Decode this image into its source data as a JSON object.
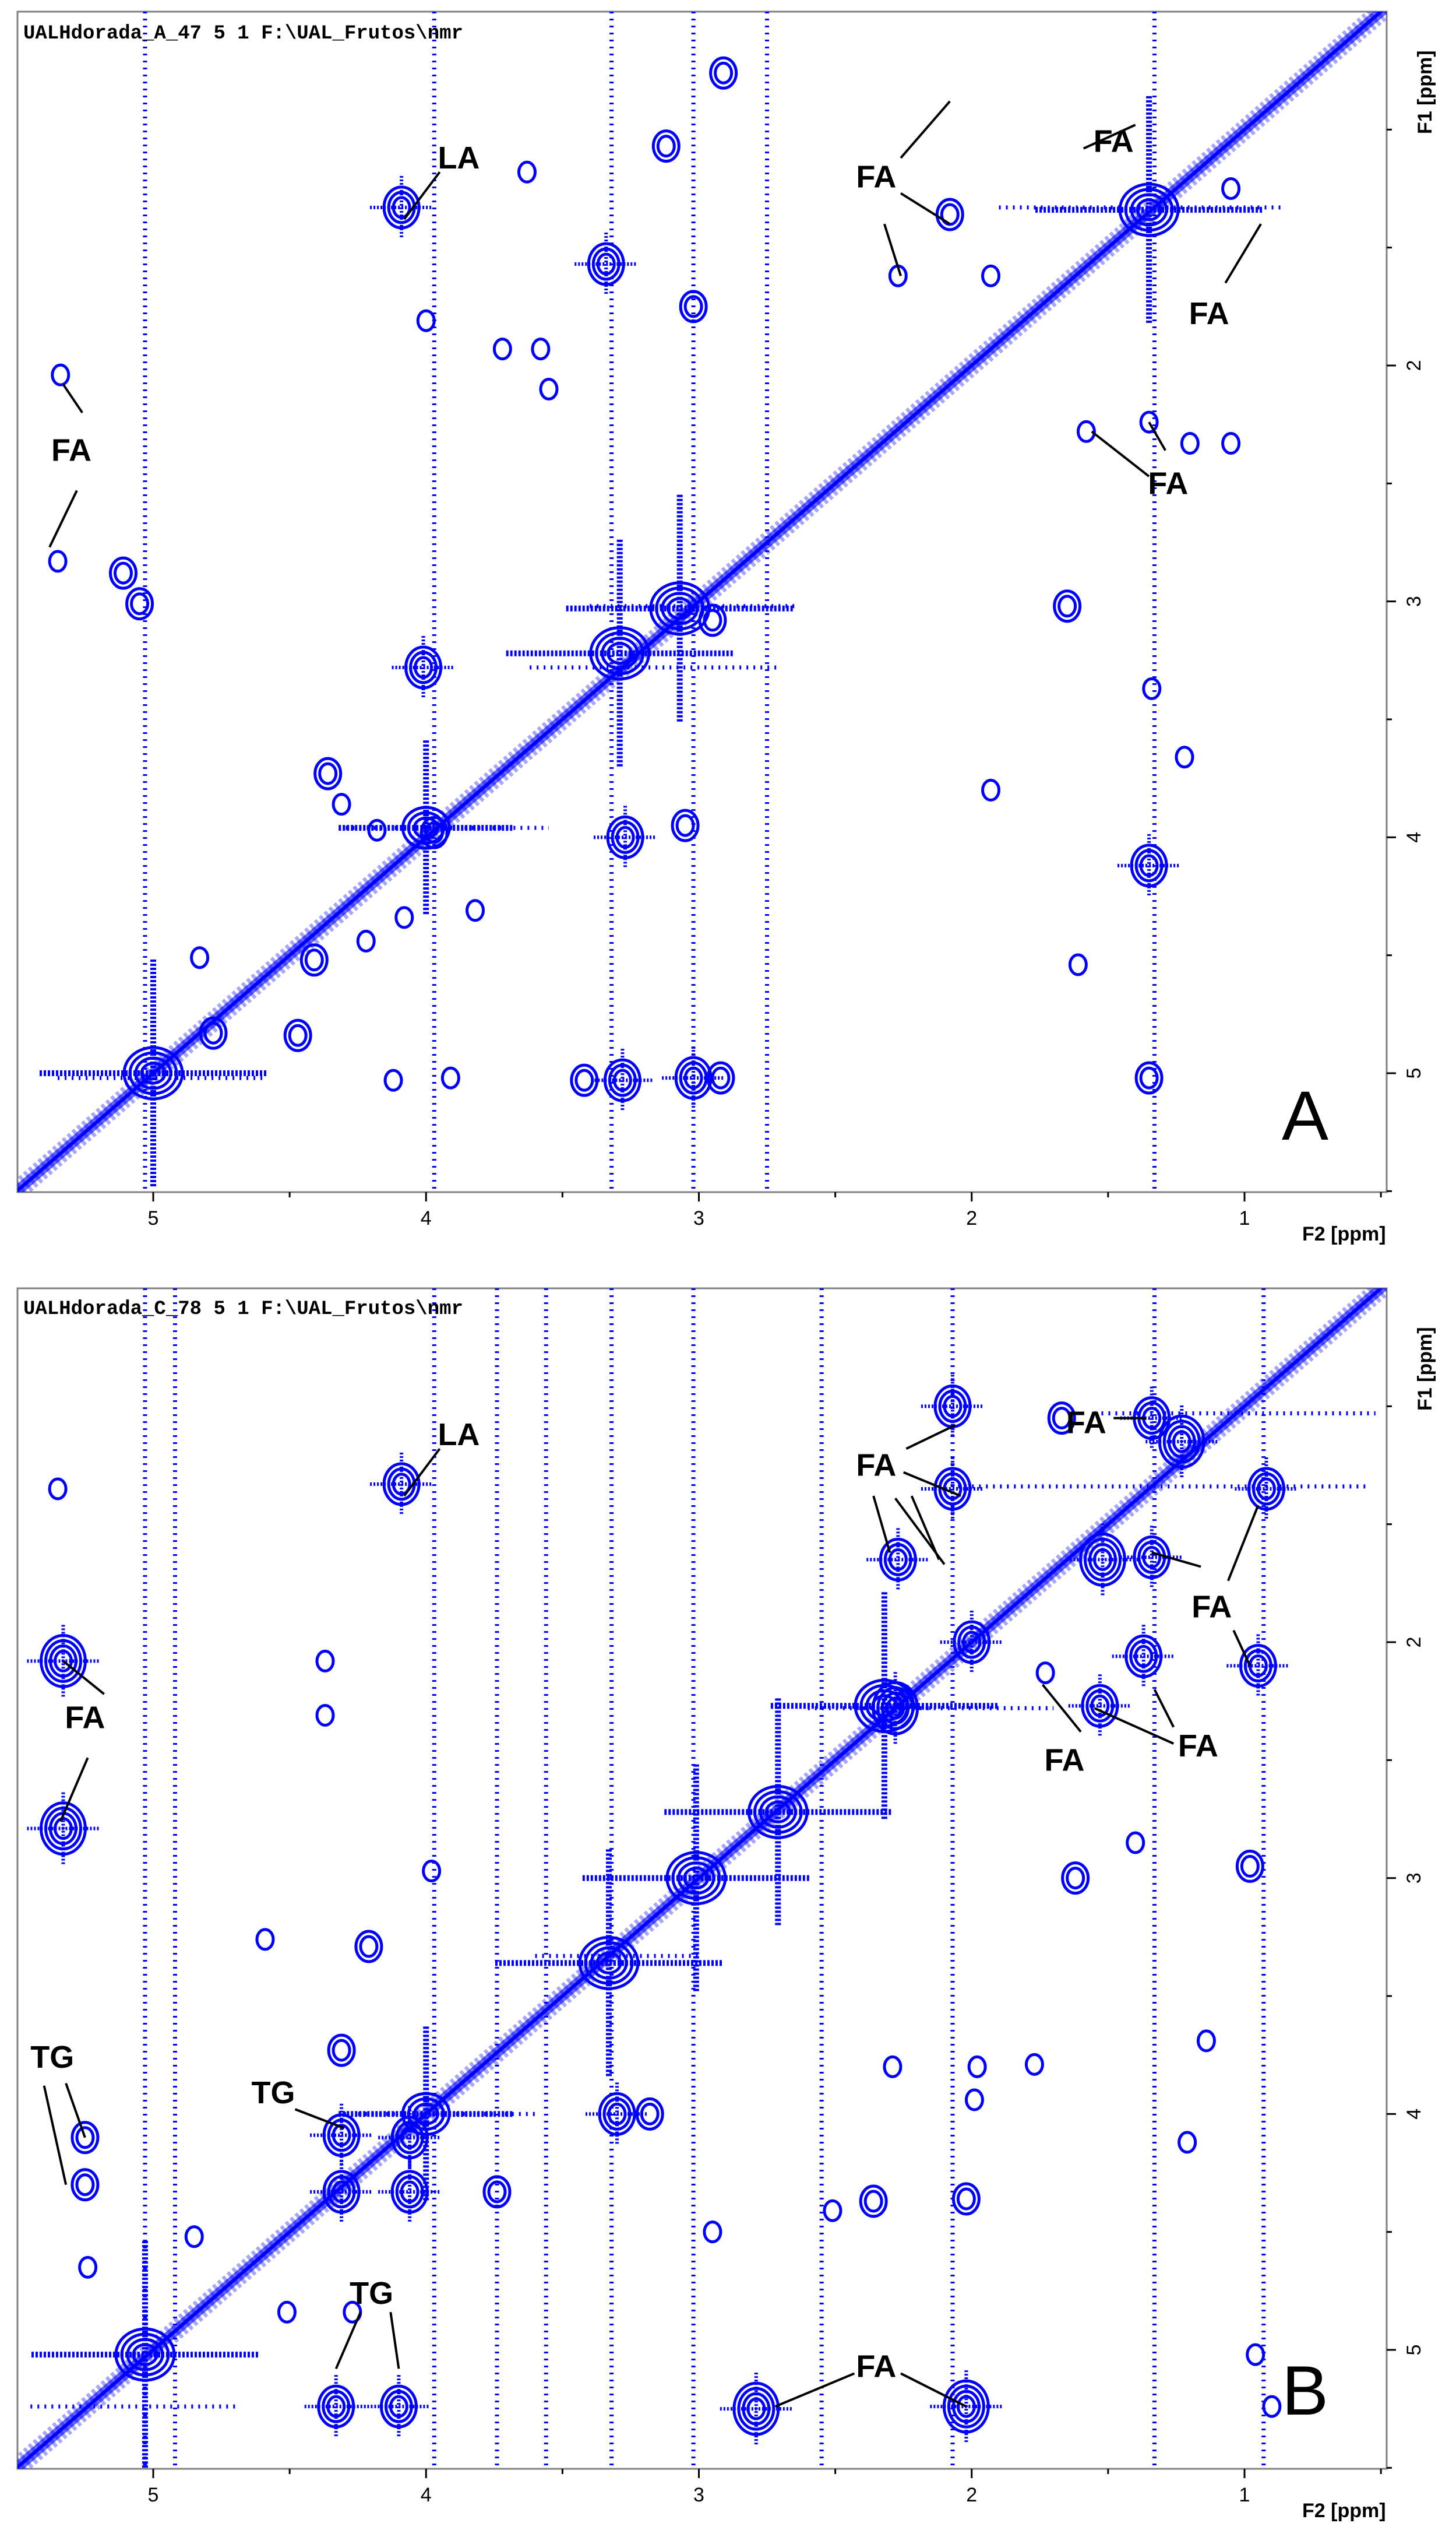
{
  "panels": [
    {
      "id": "A",
      "file_label": "UALHdorada_A_47  5  1  F:\\UAL_Frutos\\nmr",
      "panel_letter": "A",
      "x_axis_title": "F2 [ppm]",
      "y_axis_title": "F1 [ppm]",
      "x_ticks": [
        "5",
        "4",
        "3",
        "2",
        "1"
      ],
      "y_ticks": [
        "2",
        "3",
        "4",
        "5"
      ],
      "annotations": [
        {
          "text": "LA",
          "x": 3.88,
          "y": 1.12
        },
        {
          "text": "FA",
          "x": 2.35,
          "y": 1.2
        },
        {
          "text": "FA",
          "x": 1.48,
          "y": 1.05
        },
        {
          "text": "FA",
          "x": 1.13,
          "y": 1.78
        },
        {
          "text": "FA",
          "x": 5.3,
          "y": 2.36
        },
        {
          "text": "FA",
          "x": 1.28,
          "y": 2.5
        }
      ],
      "leaders": [
        {
          "from": [
            3.95,
            1.18
          ],
          "to": [
            4.08,
            1.38
          ]
        },
        {
          "from": [
            2.26,
            1.12
          ],
          "to": [
            2.08,
            0.88
          ]
        },
        {
          "from": [
            2.26,
            1.27
          ],
          "to": [
            2.08,
            1.4
          ]
        },
        {
          "from": [
            2.32,
            1.4
          ],
          "to": [
            2.26,
            1.62
          ]
        },
        {
          "from": [
            1.59,
            1.08
          ],
          "to": [
            1.4,
            0.98
          ]
        },
        {
          "from": [
            1.07,
            1.65
          ],
          "to": [
            0.94,
            1.4
          ]
        },
        {
          "from": [
            1.35,
            2.47
          ],
          "to": [
            1.56,
            2.28
          ]
        },
        {
          "from": [
            1.29,
            2.36
          ],
          "to": [
            1.35,
            2.24
          ]
        },
        {
          "from": [
            5.26,
            2.2
          ],
          "to": [
            5.33,
            2.08
          ]
        },
        {
          "from": [
            5.28,
            2.53
          ],
          "to": [
            5.38,
            2.77
          ]
        }
      ],
      "cross_peaks": [
        [
          4.09,
          1.33,
          3
        ],
        [
          3.34,
          1.57,
          3
        ],
        [
          3.12,
          1.07,
          2
        ],
        [
          3.02,
          1.75,
          2
        ],
        [
          2.91,
          0.76,
          2
        ],
        [
          2.08,
          1.36,
          2
        ],
        [
          2.27,
          1.62,
          1
        ],
        [
          1.93,
          1.62,
          1
        ],
        [
          1.35,
          2.24,
          1
        ],
        [
          1.58,
          2.28,
          1
        ],
        [
          1.65,
          3.02,
          2
        ],
        [
          1.34,
          3.37,
          1
        ],
        [
          1.22,
          3.66,
          1
        ],
        [
          1.93,
          3.8,
          1
        ],
        [
          1.35,
          4.12,
          3
        ],
        [
          1.61,
          4.54,
          1
        ],
        [
          1.35,
          5.02,
          2
        ],
        [
          5.34,
          2.04,
          1
        ],
        [
          5.35,
          2.83,
          1
        ],
        [
          5.11,
          2.88,
          2
        ],
        [
          5.05,
          3.01,
          2
        ],
        [
          4.01,
          3.28,
          3
        ],
        [
          3.97,
          3.98,
          2
        ],
        [
          3.27,
          4.0,
          3
        ],
        [
          3.05,
          3.95,
          2
        ],
        [
          3.02,
          5.02,
          3
        ],
        [
          3.28,
          5.03,
          3
        ],
        [
          3.42,
          5.03,
          2
        ],
        [
          2.92,
          5.02,
          2
        ],
        [
          4.36,
          3.73,
          2
        ],
        [
          4.31,
          3.86,
          1
        ],
        [
          4.18,
          3.97,
          1
        ],
        [
          3.82,
          4.31,
          1
        ],
        [
          4.08,
          4.34,
          1
        ],
        [
          4.41,
          4.52,
          2
        ],
        [
          4.78,
          4.83,
          2
        ],
        [
          4.47,
          4.84,
          2
        ],
        [
          4.83,
          4.51,
          1
        ],
        [
          4.12,
          5.03,
          1
        ],
        [
          3.91,
          5.02,
          1
        ],
        [
          3.58,
          1.93,
          1
        ],
        [
          3.72,
          1.93,
          1
        ],
        [
          3.55,
          2.1,
          1
        ],
        [
          1.05,
          1.25,
          1
        ],
        [
          1.2,
          2.33,
          1
        ],
        [
          1.05,
          2.33,
          1
        ],
        [
          4.0,
          1.81,
          1
        ],
        [
          3.63,
          1.18,
          1
        ],
        [
          2.95,
          3.08,
          2
        ],
        [
          4.22,
          4.44,
          1
        ]
      ],
      "diagonal_crosses": [
        [
          5.0,
          5.0,
          3
        ],
        [
          3.29,
          3.22,
          3
        ],
        [
          3.07,
          3.03,
          3
        ],
        [
          4.0,
          3.96,
          2
        ],
        [
          1.35,
          1.34,
          3
        ]
      ],
      "vertical_streaks": [
        5.03,
        3.97,
        3.32,
        3.02,
        2.75,
        1.33
      ],
      "horizontal_streaks": [
        [
          1.33,
          1.9,
          0.85
        ],
        [
          3.02,
          3.4,
          2.65
        ],
        [
          3.28,
          3.62,
          2.7
        ],
        [
          3.96,
          4.32,
          3.55
        ],
        [
          5.02,
          5.35,
          4.6
        ]
      ]
    },
    {
      "id": "B",
      "file_label": "UALHdorada_C_78  5  1  F:\\UAL_Frutos\\nmr",
      "panel_letter": "B",
      "x_axis_title": "F2 [ppm]",
      "y_axis_title": "F1 [ppm]",
      "x_ticks": [
        "5",
        "4",
        "3",
        "2",
        "1"
      ],
      "y_ticks": [
        "2",
        "3",
        "4",
        "5"
      ],
      "annotations": [
        {
          "text": "LA",
          "x": 3.88,
          "y": 1.12
        },
        {
          "text": "FA",
          "x": 2.35,
          "y": 1.25
        },
        {
          "text": "FA",
          "x": 1.58,
          "y": 1.07
        },
        {
          "text": "FA",
          "x": 1.12,
          "y": 1.85
        },
        {
          "text": "FA",
          "x": 5.25,
          "y": 2.32
        },
        {
          "text": "FA",
          "x": 1.66,
          "y": 2.5
        },
        {
          "text": "FA",
          "x": 1.17,
          "y": 2.44
        },
        {
          "text": "TG",
          "x": 5.37,
          "y": 3.76
        },
        {
          "text": "TG",
          "x": 4.56,
          "y": 3.91
        },
        {
          "text": "TG",
          "x": 4.2,
          "y": 4.76
        },
        {
          "text": "FA",
          "x": 2.35,
          "y": 5.07
        }
      ],
      "leaders": [
        {
          "from": [
            3.95,
            1.18
          ],
          "to": [
            4.08,
            1.38
          ]
        },
        {
          "from": [
            2.24,
            1.18
          ],
          "to": [
            2.06,
            1.08
          ]
        },
        {
          "from": [
            2.25,
            1.28
          ],
          "to": [
            2.04,
            1.38
          ]
        },
        {
          "from": [
            2.36,
            1.38
          ],
          "to": [
            2.3,
            1.62
          ]
        },
        {
          "from": [
            2.28,
            1.39
          ],
          "to": [
            2.1,
            1.67
          ]
        },
        {
          "from": [
            2.22,
            1.38
          ],
          "to": [
            2.12,
            1.65
          ]
        },
        {
          "from": [
            1.48,
            1.05
          ],
          "to": [
            1.36,
            1.05
          ]
        },
        {
          "from": [
            1.06,
            1.74
          ],
          "to": [
            0.95,
            1.42
          ]
        },
        {
          "from": [
            1.04,
            1.95
          ],
          "to": [
            0.98,
            2.1
          ]
        },
        {
          "from": [
            1.16,
            1.68
          ],
          "to": [
            1.34,
            1.62
          ]
        },
        {
          "from": [
            1.6,
            2.38
          ],
          "to": [
            1.74,
            2.18
          ]
        },
        {
          "from": [
            1.26,
            2.43
          ],
          "to": [
            1.55,
            2.28
          ]
        },
        {
          "from": [
            1.26,
            2.36
          ],
          "to": [
            1.33,
            2.2
          ]
        },
        {
          "from": [
            5.18,
            2.22
          ],
          "to": [
            5.33,
            2.08
          ]
        },
        {
          "from": [
            5.24,
            2.49
          ],
          "to": [
            5.34,
            2.76
          ]
        },
        {
          "from": [
            5.32,
            3.87
          ],
          "to": [
            5.25,
            4.1
          ]
        },
        {
          "from": [
            5.4,
            3.88
          ],
          "to": [
            5.32,
            4.3
          ]
        },
        {
          "from": [
            4.48,
            3.98
          ],
          "to": [
            4.3,
            4.06
          ]
        },
        {
          "from": [
            4.24,
            4.84
          ],
          "to": [
            4.33,
            5.08
          ]
        },
        {
          "from": [
            4.13,
            4.84
          ],
          "to": [
            4.1,
            5.08
          ]
        },
        {
          "from": [
            2.43,
            5.1
          ],
          "to": [
            2.72,
            5.24
          ]
        },
        {
          "from": [
            2.26,
            5.1
          ],
          "to": [
            2.02,
            5.24
          ]
        }
      ],
      "cross_peaks": [
        [
          4.09,
          1.33,
          3
        ],
        [
          2.07,
          1.0,
          3
        ],
        [
          2.07,
          1.35,
          3
        ],
        [
          1.67,
          1.05,
          2
        ],
        [
          1.34,
          1.05,
          3
        ],
        [
          1.23,
          1.15,
          4
        ],
        [
          2.27,
          1.65,
          3
        ],
        [
          1.52,
          1.65,
          4
        ],
        [
          1.34,
          1.64,
          3
        ],
        [
          0.92,
          1.35,
          3
        ],
        [
          2.0,
          2.0,
          3
        ],
        [
          1.37,
          2.06,
          3
        ],
        [
          0.95,
          2.1,
          3
        ],
        [
          1.53,
          2.27,
          3
        ],
        [
          2.28,
          2.28,
          4
        ],
        [
          1.73,
          2.13,
          1
        ],
        [
          5.33,
          2.08,
          4
        ],
        [
          5.33,
          2.79,
          4
        ],
        [
          1.62,
          3.0,
          2
        ],
        [
          0.98,
          2.95,
          2
        ],
        [
          4.31,
          3.73,
          2
        ],
        [
          4.31,
          4.09,
          3
        ],
        [
          4.06,
          4.1,
          3
        ],
        [
          4.31,
          4.33,
          3
        ],
        [
          4.06,
          4.33,
          3
        ],
        [
          5.25,
          4.1,
          2
        ],
        [
          5.25,
          4.3,
          2
        ],
        [
          3.3,
          4.0,
          3
        ],
        [
          3.18,
          4.0,
          2
        ],
        [
          4.33,
          5.24,
          3
        ],
        [
          4.1,
          5.24,
          3
        ],
        [
          2.79,
          5.25,
          4
        ],
        [
          2.02,
          5.24,
          4
        ],
        [
          2.36,
          4.37,
          2
        ],
        [
          2.02,
          4.36,
          2
        ],
        [
          1.98,
          3.8,
          1
        ],
        [
          1.77,
          3.79,
          1
        ],
        [
          2.29,
          3.8,
          1
        ],
        [
          1.14,
          3.69,
          1
        ],
        [
          1.21,
          4.12,
          1
        ],
        [
          1.99,
          3.94,
          1
        ],
        [
          2.95,
          4.5,
          1
        ],
        [
          2.51,
          4.41,
          1
        ],
        [
          1.4,
          2.85,
          1
        ],
        [
          4.37,
          2.31,
          1
        ],
        [
          4.37,
          2.08,
          1
        ],
        [
          3.98,
          2.97,
          1
        ],
        [
          5.35,
          1.35,
          1
        ],
        [
          5.24,
          4.65,
          1
        ],
        [
          0.96,
          5.02,
          1
        ],
        [
          0.9,
          5.24,
          1
        ],
        [
          3.74,
          4.33,
          2
        ],
        [
          4.21,
          3.29,
          2
        ],
        [
          4.59,
          3.26,
          1
        ],
        [
          4.85,
          4.52,
          1
        ],
        [
          4.51,
          4.84,
          1
        ],
        [
          4.27,
          4.84,
          1
        ]
      ],
      "diagonal_crosses": [
        [
          5.03,
          5.02,
          3
        ],
        [
          3.33,
          3.36,
          3
        ],
        [
          3.01,
          3.0,
          3
        ],
        [
          2.71,
          2.72,
          3
        ],
        [
          2.32,
          2.27,
          3
        ],
        [
          4.0,
          4.0,
          2
        ]
      ],
      "vertical_streaks": [
        5.03,
        4.92,
        3.97,
        3.74,
        3.56,
        3.32,
        3.02,
        2.55,
        2.07,
        1.33,
        0.93
      ],
      "horizontal_streaks": [
        [
          1.03,
          1.55,
          0.52
        ],
        [
          1.34,
          2.05,
          0.55
        ],
        [
          2.28,
          2.6,
          1.7
        ],
        [
          3.33,
          3.6,
          3.0
        ],
        [
          4.0,
          4.3,
          3.6
        ],
        [
          5.24,
          5.45,
          4.7
        ]
      ]
    }
  ]
}
